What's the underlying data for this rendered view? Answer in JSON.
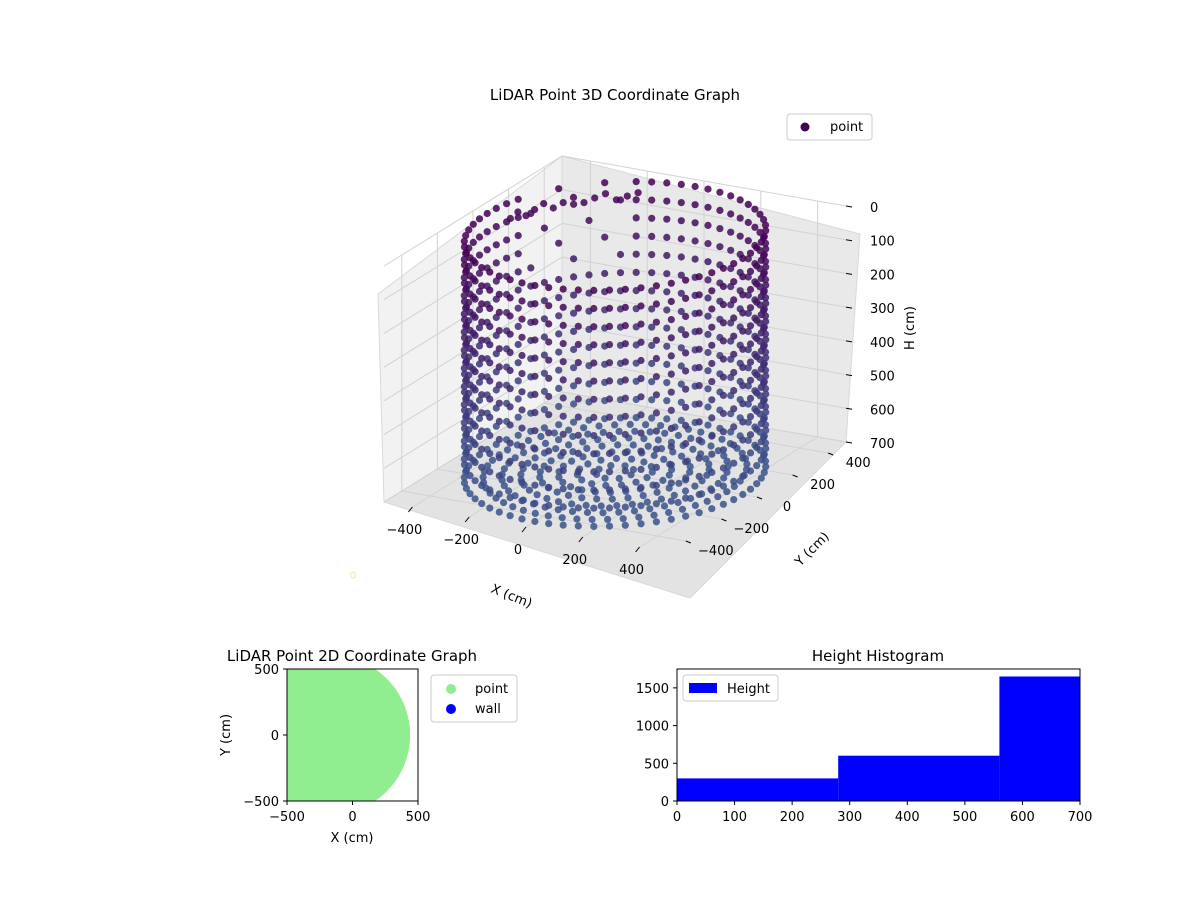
{
  "chart_data": [
    {
      "type": "scatter",
      "title": "LiDAR Point 3D Coordinate Graph",
      "xlabel": "X (cm)",
      "ylabel": "Y (cm)",
      "zlabel": "H (cm)",
      "legend": [
        "point"
      ],
      "legend_position": "top-right",
      "xlim": [
        -500,
        500
      ],
      "ylim": [
        -500,
        500
      ],
      "zlim": [
        700,
        0
      ],
      "x_ticks": [
        -400,
        -200,
        0,
        200,
        400
      ],
      "y_ticks": [
        -400,
        -200,
        0,
        200,
        400
      ],
      "z_ticks": [
        0,
        100,
        200,
        300,
        400,
        500,
        600,
        700
      ],
      "grid": true,
      "structure": {
        "cylinder_radius": 450,
        "angular_columns": 60,
        "levels": 14,
        "height_range": [
          0,
          700
        ],
        "floor_rings": 7
      },
      "colors": {
        "top": "#440154",
        "bottom": "#3b528b"
      }
    },
    {
      "type": "scatter",
      "title": "LiDAR Point 2D Coordinate Graph",
      "xlabel": "X (cm)",
      "ylabel": "Y (cm)",
      "xlim": [
        -500,
        500
      ],
      "ylim": [
        -500,
        500
      ],
      "x_ticks": [
        -500,
        0,
        500
      ],
      "y_ticks": [
        -500,
        0,
        500
      ],
      "series": [
        {
          "name": "point",
          "color": "#90ee90"
        },
        {
          "name": "wall",
          "color": "#0000ff"
        }
      ],
      "legend_position": "outside-right"
    },
    {
      "type": "bar",
      "title": "Height Histogram",
      "xlim": [
        0,
        700
      ],
      "ylim": [
        0,
        1750
      ],
      "x_ticks": [
        0,
        100,
        200,
        300,
        400,
        500,
        600,
        700
      ],
      "y_ticks": [
        0,
        500,
        1000,
        1500
      ],
      "bins": [
        [
          0,
          280
        ],
        [
          280,
          560
        ],
        [
          560,
          700
        ]
      ],
      "values": [
        300,
        600,
        1650
      ],
      "legend": [
        "Height"
      ],
      "legend_position": "top-left",
      "color": "#0000ff"
    }
  ]
}
